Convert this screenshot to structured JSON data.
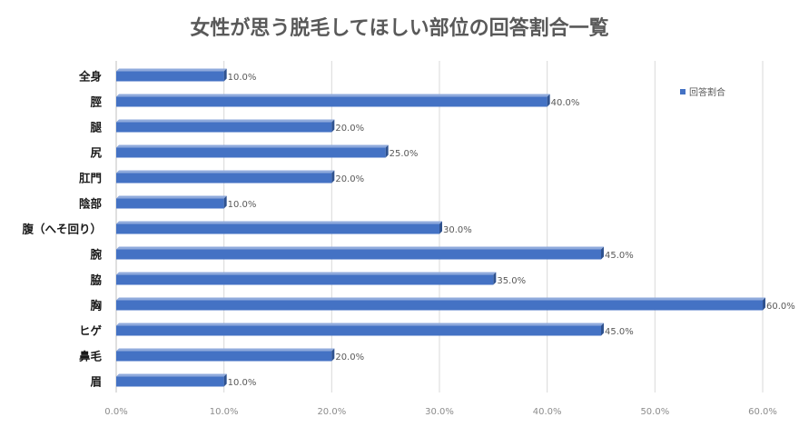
{
  "chart_data": {
    "type": "bar",
    "orientation": "horizontal",
    "title": "女性が思う脱毛してほしい部位の回答割合一覧",
    "categories": [
      "全身",
      "脛",
      "腿",
      "尻",
      "肛門",
      "陰部",
      "腹（へそ回り）",
      "腕",
      "脇",
      "胸",
      "ヒゲ",
      "鼻毛",
      "眉"
    ],
    "series": [
      {
        "name": "回答割合",
        "values": [
          10.0,
          40.0,
          20.0,
          25.0,
          20.0,
          10.0,
          30.0,
          45.0,
          35.0,
          60.0,
          45.0,
          20.0,
          10.0
        ],
        "data_labels": [
          "10.0%",
          "40.0%",
          "20.0%",
          "25.0%",
          "20.0%",
          "10.0%",
          "30.0%",
          "45.0%",
          "35.0%",
          "60.0%",
          "45.0%",
          "20.0%",
          "10.0%"
        ]
      }
    ],
    "xlim": [
      0,
      60
    ],
    "x_ticks": [
      "0.0%",
      "10.0%",
      "20.0%",
      "30.0%",
      "40.0%",
      "50.0%",
      "60.0%"
    ],
    "grid": "vertical",
    "legend_position": "right",
    "colors": {
      "bar_front": "#4472c4",
      "bar_side": "#2f528f",
      "bar_top": "#8faadc",
      "title": "#595959",
      "grid": "#d9d9d9"
    }
  }
}
